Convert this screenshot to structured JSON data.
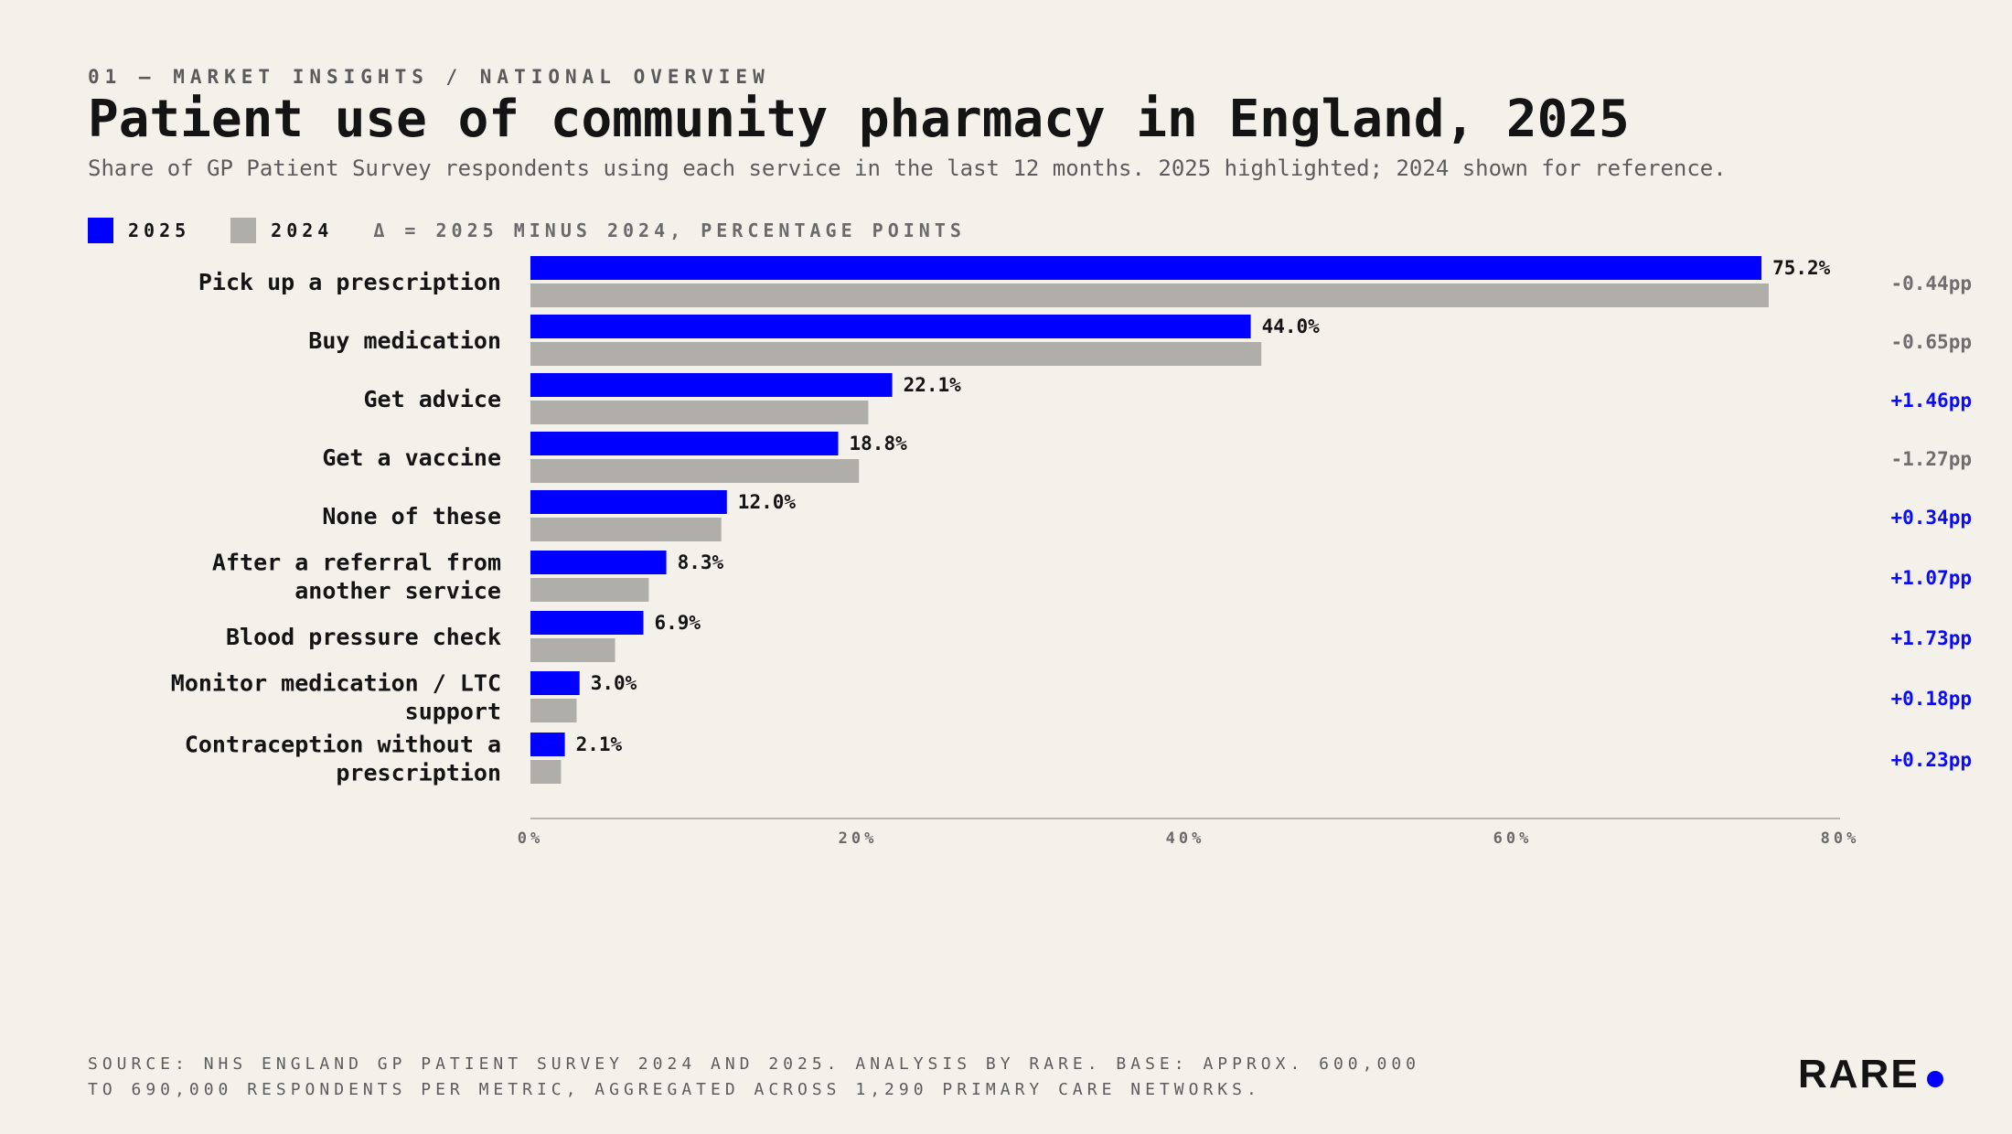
{
  "header": {
    "eyebrow": "01 — MARKET INSIGHTS / NATIONAL OVERVIEW",
    "title": "Patient use of community pharmacy in England, 2025",
    "subtitle": "Share of GP Patient Survey respondents using each service in the last 12 months. 2025 highlighted; 2024 shown for reference."
  },
  "legend": {
    "series_2025": "2025",
    "series_2024": "2024",
    "note": "Δ = 2025 MINUS 2024, PERCENTAGE POINTS"
  },
  "colors": {
    "s2025": "#0000ff",
    "s2024": "#b0aea8",
    "delta_positive": "#0a0aff",
    "delta_negative": "#6e6e6e",
    "axis": "#b8b5ae"
  },
  "chart_data": {
    "type": "bar",
    "orientation": "horizontal",
    "categories": [
      "Pick up a prescription",
      "Buy medication",
      "Get advice",
      "Get a vaccine",
      "None of these",
      "After a referral from another service",
      "Blood pressure check",
      "Monitor medication / LTC support",
      "Contraception without a prescription"
    ],
    "series": [
      {
        "name": "2025",
        "values": [
          75.2,
          44.0,
          22.1,
          18.8,
          12.0,
          8.3,
          6.9,
          3.0,
          2.1
        ]
      },
      {
        "name": "2024",
        "values": [
          75.64,
          44.65,
          20.64,
          20.07,
          11.66,
          7.23,
          5.17,
          2.82,
          1.87
        ]
      }
    ],
    "value_labels": [
      "75.2%",
      "44.0%",
      "22.1%",
      "18.8%",
      "12.0%",
      "8.3%",
      "6.9%",
      "3.0%",
      "2.1%"
    ],
    "deltas": [
      "-0.44pp",
      "-0.65pp",
      "+1.46pp",
      "-1.27pp",
      "+0.34pp",
      "+1.07pp",
      "+1.73pp",
      "+0.18pp",
      "+0.23pp"
    ],
    "xlim": [
      0,
      80
    ],
    "xticks": [
      0,
      20,
      40,
      60,
      80
    ],
    "xtick_labels": [
      "0%",
      "20%",
      "40%",
      "60%",
      "80%"
    ],
    "grid": false,
    "legend_position": "top-left"
  },
  "footer": {
    "source": "SOURCE: NHS ENGLAND GP PATIENT SURVEY 2024 AND 2025. ANALYSIS BY RARE. BASE: APPROX. 600,000 TO 690,000 RESPONDENTS PER METRIC, AGGREGATED ACROSS 1,290 PRIMARY CARE NETWORKS.",
    "logo": "RARE"
  }
}
